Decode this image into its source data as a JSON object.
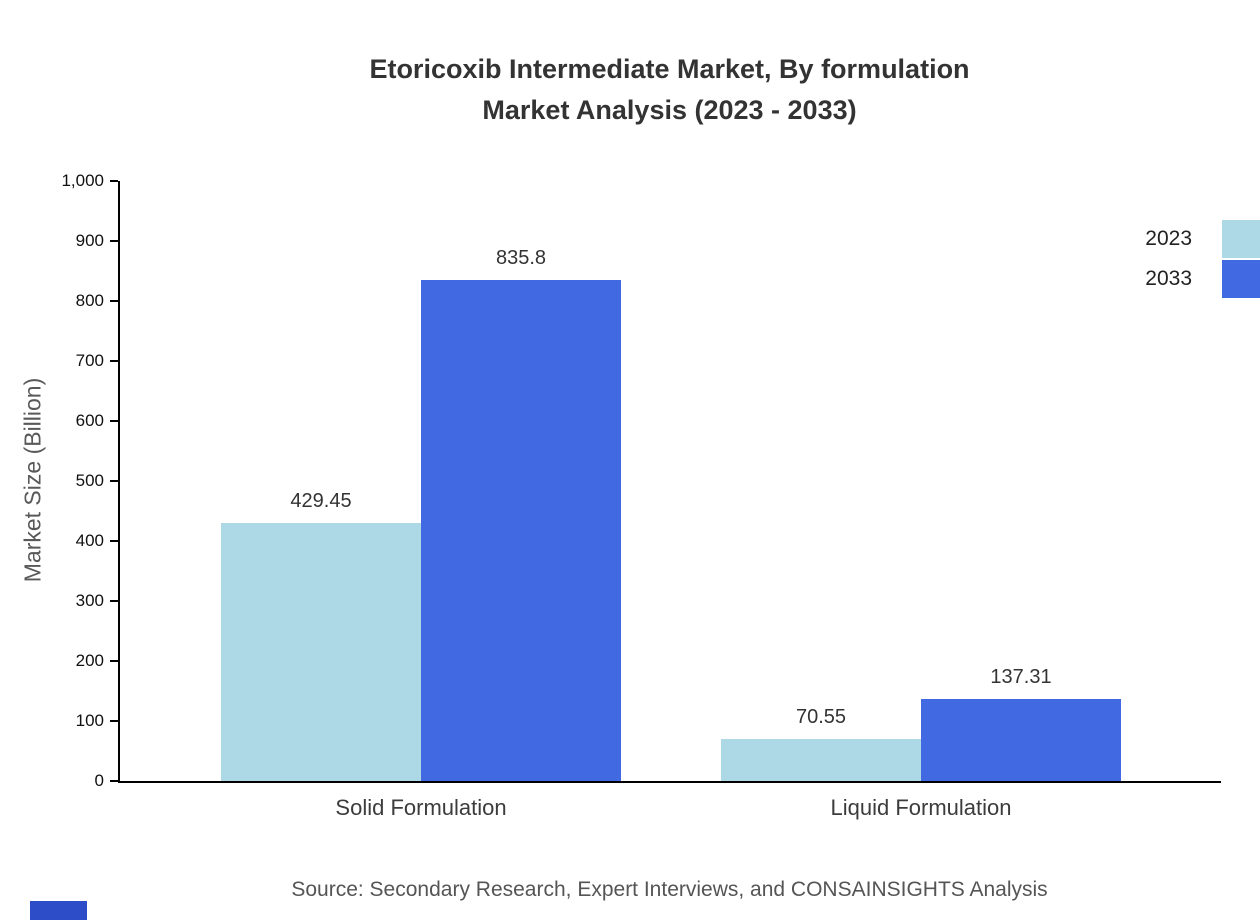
{
  "title": {
    "line1": "Etoricoxib Intermediate Market, By formulation",
    "line2": "Market Analysis (2023 - 2033)"
  },
  "y_axis_title": "Market Size (Billion)",
  "source_text": "Source: Secondary Research, Expert Interviews, and CONSAINSIGHTS Analysis",
  "colors": {
    "series_2023": "#ADD8E6",
    "series_2033": "#4169E1",
    "axis": "#000000",
    "title_text": "#333333",
    "logo_mark": "#2D4CC8"
  },
  "chart_data": {
    "type": "bar",
    "title": "Etoricoxib Intermediate Market, By formulation Market Analysis (2023 - 2033)",
    "categories": [
      "Solid Formulation",
      "Liquid Formulation"
    ],
    "series": [
      {
        "name": "2023",
        "color": "#ADD8E6",
        "values": [
          429.45,
          70.55
        ]
      },
      {
        "name": "2033",
        "color": "#4169E1",
        "values": [
          835.8,
          137.31
        ]
      }
    ],
    "xlabel": "",
    "ylabel": "Market Size (Billion)",
    "ylim": [
      0,
      1000
    ],
    "ytick_step": 100,
    "ytick_labels": [
      "0",
      "100",
      "200",
      "300",
      "400",
      "500",
      "600",
      "700",
      "800",
      "900",
      "1,000"
    ],
    "grid": false,
    "legend_position": "top-right",
    "value_labels": {
      "Solid Formulation": {
        "2023": "429.45",
        "2033": "835.8"
      },
      "Liquid Formulation": {
        "2023": "70.55",
        "2033": "137.31"
      }
    }
  }
}
